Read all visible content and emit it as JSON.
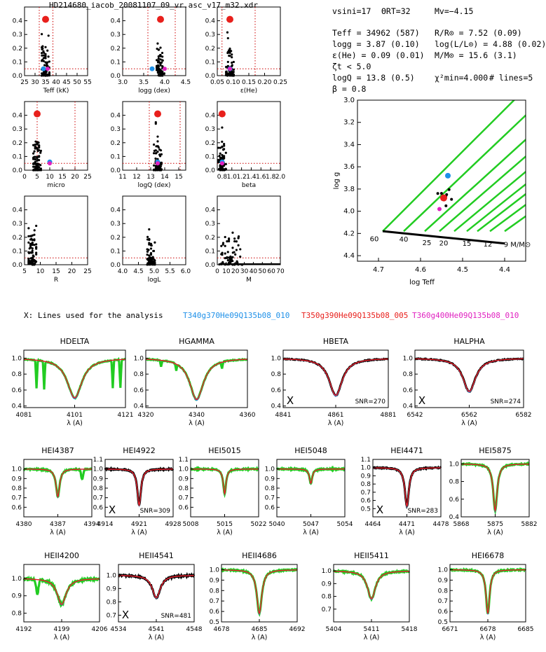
{
  "figure": {
    "title": "HD214680_iacob_20081107_09_vr.asc_v17_m32.xdr",
    "colors": {
      "best": "#e8201c",
      "model_blue": "#1e90e8",
      "model_magenta": "#e020c0",
      "obs": "#22cc22",
      "grid": "#cc0000"
    }
  },
  "params": {
    "vsini": "vsini=17",
    "theta_rt": "ΘRT=32",
    "mv": "Mv=−4.15",
    "teff": "Teff = 34962 (587)",
    "logg": "logg = 3.87 (0.10)",
    "eps_he": "ε(He) = 0.09 (0.01)",
    "micro": "ζt < 5.0",
    "logq": "logQ = 13.8 (0.5)",
    "beta": "β = 0.8",
    "radius": "R/R⊙ = 7.52 (0.09)",
    "lum": "log(L/L⊙) = 4.88 (0.02)",
    "mass": "M/M⊙ = 15.6 (3.1)",
    "chi2": "χ²min=4.000",
    "nlines": "# lines=5"
  },
  "legend": {
    "prefix": "X: Lines used for the analysis",
    "model_1": "T340g370He09Q135b08_010",
    "model_2": "T350g390He09Q135b08_005",
    "model_3": "T360g400He09Q135b08_010"
  },
  "chart_data": [
    {
      "type": "scatter",
      "id": "teff",
      "xlabel": "Teff (kK)",
      "xticks": [
        "25",
        "30",
        "35",
        "40",
        "45",
        "50",
        "55"
      ],
      "xlim": [
        25,
        55
      ],
      "ylim": [
        0,
        0.5
      ],
      "yticks": [
        "0.0",
        "0.1",
        "0.2",
        "0.3",
        "0.4"
      ],
      "best": [
        35,
        0.41
      ],
      "vlines": [
        32,
        38.5
      ],
      "hline": 0.05,
      "marker_blue": [
        34,
        0.05
      ],
      "marker_magenta": [
        36,
        0.05
      ]
    },
    {
      "type": "scatter",
      "id": "logg",
      "xlabel": "logg (dex)",
      "xticks": [
        "3.0",
        "3.5",
        "4.0",
        "4.5"
      ],
      "xlim": [
        3.0,
        4.5
      ],
      "ylim": [
        0,
        0.5
      ],
      "yticks": [
        "0.0",
        "0.1",
        "0.2",
        "0.3",
        "0.4"
      ],
      "best": [
        3.9,
        0.41
      ],
      "vlines": [
        3.6,
        4.25
      ],
      "hline": 0.05,
      "marker_blue": [
        3.7,
        0.05
      ],
      "marker_magenta": [
        4.0,
        0.05
      ]
    },
    {
      "type": "scatter",
      "id": "he",
      "xlabel": "ε(He)",
      "xticks": [
        "0.05",
        "0.10",
        "0.15",
        "0.20",
        "0.25"
      ],
      "xlim": [
        0.05,
        0.25
      ],
      "ylim": [
        0,
        0.5
      ],
      "yticks": [
        "0.0",
        "0.1",
        "0.2",
        "0.3",
        "0.4"
      ],
      "best": [
        0.09,
        0.41
      ],
      "vlines": [
        0.065,
        0.17
      ],
      "hline": 0.05,
      "marker_blue": [
        0.09,
        0.05
      ],
      "marker_magenta": [
        0.09,
        0.05
      ]
    },
    {
      "type": "scatter",
      "id": "micro",
      "xlabel": "micro",
      "xticks": [
        "0",
        "5",
        "10",
        "15",
        "20",
        "25"
      ],
      "xlim": [
        0,
        25
      ],
      "ylim": [
        0,
        0.5
      ],
      "yticks": [
        "0.0",
        "0.1",
        "0.2",
        "0.3",
        "0.4"
      ],
      "best": [
        5,
        0.41
      ],
      "vlines": [
        5,
        20
      ],
      "hline": 0.05,
      "marker_blue": [
        10,
        0.06
      ],
      "marker_magenta": [
        10,
        0.05
      ]
    },
    {
      "type": "scatter",
      "id": "logq",
      "xlabel": "logQ (dex)",
      "xticks": [
        "11",
        "12",
        "13",
        "14",
        "15"
      ],
      "xlim": [
        11,
        15.5
      ],
      "ylim": [
        0,
        0.5
      ],
      "yticks": [
        "0.0",
        "0.1",
        "0.2",
        "0.3",
        "0.4"
      ],
      "best": [
        13.5,
        0.41
      ],
      "vlines": [
        12.9,
        15.1
      ],
      "hline": 0.05,
      "marker_blue": [
        13.5,
        0.06
      ],
      "marker_magenta": [
        13.5,
        0.05
      ]
    },
    {
      "type": "scatter",
      "id": "beta",
      "xlabel": "beta",
      "xticks": [
        "0.8",
        "1.0",
        "1.2",
        "1.4",
        "1.6",
        "1.8",
        "2.0"
      ],
      "xlim": [
        0.7,
        2.0
      ],
      "ylim": [
        0,
        0.5
      ],
      "yticks": [
        "0.0",
        "0.1",
        "0.2",
        "0.3",
        "0.4"
      ],
      "best": [
        0.8,
        0.41
      ],
      "vlines": [],
      "hline": 0.05,
      "marker_blue": [
        0.8,
        0.06
      ],
      "marker_magenta": [
        0.8,
        0.05
      ]
    },
    {
      "type": "scatter",
      "id": "R",
      "xlabel": "R",
      "xticks": [
        "5",
        "10",
        "15",
        "20",
        "25"
      ],
      "xlim": [
        5,
        25
      ],
      "ylim": [
        0,
        0.5
      ],
      "yticks": [
        "0.0",
        "0.1",
        "0.2",
        "0.3",
        "0.4"
      ],
      "best": null,
      "vlines": [],
      "hline": 0.05
    },
    {
      "type": "scatter",
      "id": "logL",
      "xlabel": "logL",
      "xticks": [
        "4.0",
        "4.5",
        "5.0",
        "5.5",
        "6.0"
      ],
      "xlim": [
        4.0,
        6.0
      ],
      "ylim": [
        0,
        0.5
      ],
      "yticks": [
        "0.0",
        "0.1",
        "0.2",
        "0.3",
        "0.4"
      ],
      "best": null,
      "vlines": [],
      "hline": 0.05
    },
    {
      "type": "scatter",
      "id": "M",
      "xlabel": "M",
      "xticks": [
        "0",
        "10",
        "20",
        "30",
        "40",
        "50",
        "60",
        "70"
      ],
      "xlim": [
        0,
        70
      ],
      "ylim": [
        0,
        0.5
      ],
      "yticks": [
        "0.0",
        "0.1",
        "0.2",
        "0.3",
        "0.4"
      ],
      "best": null,
      "vlines": [],
      "hline": 0.05
    },
    {
      "type": "line",
      "id": "hrd",
      "xlabel": "log Teff",
      "ylabel": "log g",
      "xticks": [
        "4.7",
        "4.6",
        "4.5",
        "4.4"
      ],
      "xlim": [
        4.75,
        4.35
      ],
      "ylim": [
        4.45,
        3.0
      ],
      "yticks": [
        "3.0",
        "3.2",
        "3.4",
        "3.6",
        "3.8",
        "4.0",
        "4.2",
        "4.4"
      ],
      "mass_labels": [
        "60",
        "40",
        "25",
        "20",
        "15",
        "12",
        "9 M/M⊙"
      ],
      "best": [
        4.545,
        3.88
      ],
      "marker_blue": [
        4.535,
        3.68
      ],
      "marker_magenta": [
        4.555,
        3.98
      ]
    },
    {
      "type": "line",
      "id": "HDELTA",
      "title": "HDELTA",
      "center": 4101,
      "xlim": [
        4081,
        4121
      ],
      "ylim": [
        0.38,
        1.1
      ],
      "depth": 0.5,
      "width": 3.5,
      "xticks": [
        "4081",
        "4101",
        "4121"
      ],
      "yticks": [
        "0.4",
        "0.6",
        "0.8",
        "1.0"
      ],
      "used": false,
      "snr": ""
    },
    {
      "type": "line",
      "id": "HGAMMA",
      "title": "HGAMMA",
      "center": 4340,
      "xlim": [
        4320,
        4360
      ],
      "ylim": [
        0.38,
        1.1
      ],
      "depth": 0.52,
      "width": 3.3,
      "xticks": [
        "4320",
        "4340",
        "4360"
      ],
      "yticks": [
        "0.4",
        "0.6",
        "0.8",
        "1.0"
      ],
      "used": false,
      "snr": ""
    },
    {
      "type": "line",
      "id": "HBETA",
      "title": "HBETA",
      "center": 4861,
      "xlim": [
        4841,
        4881
      ],
      "ylim": [
        0.38,
        1.1
      ],
      "depth": 0.47,
      "width": 3.0,
      "xticks": [
        "4841",
        "4861",
        "4881"
      ],
      "yticks": [
        "0.4",
        "0.6",
        "0.8",
        "1.0"
      ],
      "used": true,
      "snr": "SNR=270"
    },
    {
      "type": "line",
      "id": "HALPHA",
      "title": "HALPHA",
      "center": 6562,
      "xlim": [
        6542,
        6582
      ],
      "ylim": [
        0.38,
        1.1
      ],
      "depth": 0.42,
      "width": 2.8,
      "xticks": [
        "6542",
        "6562",
        "6582"
      ],
      "yticks": [
        "0.4",
        "0.6",
        "0.8",
        "1.0"
      ],
      "used": true,
      "snr": "SNR=274"
    },
    {
      "type": "line",
      "id": "HEI4387",
      "title": "HEI4387",
      "center": 4387,
      "xlim": [
        4380,
        4394
      ],
      "ylim": [
        0.5,
        1.1
      ],
      "depth": 0.29,
      "width": 0.45,
      "xticks": [
        "4380",
        "4387",
        "4394"
      ],
      "yticks": [
        "0.6",
        "0.7",
        "0.8",
        "0.9",
        "1.0"
      ],
      "used": false,
      "snr": ""
    },
    {
      "type": "line",
      "id": "HEI4922",
      "title": "HEI4922",
      "center": 4921,
      "xlim": [
        4914,
        4928
      ],
      "ylim": [
        0.5,
        1.1
      ],
      "depth": 0.38,
      "width": 0.45,
      "xticks": [
        "4914",
        "4921",
        "4928"
      ],
      "yticks": [
        "0.6",
        "0.7",
        "0.8",
        "0.9",
        "1.0",
        "1.1"
      ],
      "used": true,
      "snr": "SNR=309"
    },
    {
      "type": "line",
      "id": "HEI5015",
      "title": "HEI5015",
      "center": 5015,
      "xlim": [
        5008,
        5022
      ],
      "ylim": [
        0.5,
        1.1
      ],
      "depth": 0.26,
      "width": 0.35,
      "xticks": [
        "5008",
        "5015",
        "5022"
      ],
      "yticks": [
        "0.6",
        "0.7",
        "0.8",
        "0.9",
        "1.0",
        "1.1"
      ],
      "used": false,
      "snr": ""
    },
    {
      "type": "line",
      "id": "HEI5048",
      "title": "HEI5048",
      "center": 5047,
      "xlim": [
        5040,
        5054
      ],
      "ylim": [
        0.5,
        1.1
      ],
      "depth": 0.15,
      "width": 0.35,
      "xticks": [
        "5040",
        "5047",
        "5054"
      ],
      "yticks": [
        "0.6",
        "0.7",
        "0.8",
        "0.9",
        "1.0"
      ],
      "used": false,
      "snr": ""
    },
    {
      "type": "line",
      "id": "HEI4471",
      "title": "HEI4471",
      "center": 4471,
      "xlim": [
        4464,
        4478
      ],
      "ylim": [
        0.4,
        1.1
      ],
      "depth": 0.47,
      "width": 0.5,
      "xticks": [
        "4464",
        "4471",
        "4478"
      ],
      "yticks": [
        "0.5",
        "0.6",
        "0.7",
        "0.8",
        "0.9",
        "1.0",
        "1.1"
      ],
      "used": true,
      "snr": "SNR=283"
    },
    {
      "type": "line",
      "id": "HEI5875",
      "title": "HEI5875",
      "center": 5875,
      "xlim": [
        5868,
        5882
      ],
      "ylim": [
        0.4,
        1.05
      ],
      "depth": 0.53,
      "width": 0.5,
      "xticks": [
        "5868",
        "5875",
        "5882"
      ],
      "yticks": [
        "0.4",
        "0.6",
        "0.8",
        "1.0"
      ],
      "used": false,
      "snr": ""
    },
    {
      "type": "line",
      "id": "HEII4200",
      "title": "HEII4200",
      "center": 4199,
      "xlim": [
        4192,
        4206
      ],
      "ylim": [
        0.75,
        1.08
      ],
      "depth": 0.15,
      "width": 1.0,
      "xticks": [
        "4192",
        "4199",
        "4206"
      ],
      "yticks": [
        "0.8",
        "0.9",
        "1.0"
      ],
      "used": false,
      "snr": ""
    },
    {
      "type": "line",
      "id": "HEII4541",
      "title": "HEII4541",
      "center": 4541,
      "xlim": [
        4534,
        4548
      ],
      "ylim": [
        0.65,
        1.08
      ],
      "depth": 0.17,
      "width": 0.9,
      "xticks": [
        "4534",
        "4541",
        "4548"
      ],
      "yticks": [
        "0.7",
        "0.8",
        "0.9",
        "1.0"
      ],
      "used": true,
      "snr": "SNR=481"
    },
    {
      "type": "line",
      "id": "HEII4686",
      "title": "HEII4686",
      "center": 4685,
      "xlim": [
        4678,
        4692
      ],
      "ylim": [
        0.5,
        1.05
      ],
      "depth": 0.42,
      "width": 0.55,
      "xticks": [
        "4678",
        "4685",
        "4692"
      ],
      "yticks": [
        "0.5",
        "0.6",
        "0.7",
        "0.8",
        "0.9",
        "1.0"
      ],
      "used": false,
      "snr": ""
    },
    {
      "type": "line",
      "id": "HEII5411",
      "title": "HEII5411",
      "center": 5411,
      "xlim": [
        5404,
        5418
      ],
      "ylim": [
        0.6,
        1.05
      ],
      "depth": 0.22,
      "width": 0.9,
      "xticks": [
        "5404",
        "5411",
        "5418"
      ],
      "yticks": [
        "0.7",
        "0.8",
        "0.9",
        "1.0"
      ],
      "used": false,
      "snr": ""
    },
    {
      "type": "line",
      "id": "HEI6678",
      "title": "HEI6678",
      "center": 6678,
      "xlim": [
        6671,
        6685
      ],
      "ylim": [
        0.5,
        1.05
      ],
      "depth": 0.42,
      "width": 0.4,
      "xticks": [
        "6671",
        "6678",
        "6685"
      ],
      "yticks": [
        "0.5",
        "0.6",
        "0.7",
        "0.8",
        "0.9",
        "1.0"
      ],
      "used": false,
      "snr": ""
    }
  ]
}
